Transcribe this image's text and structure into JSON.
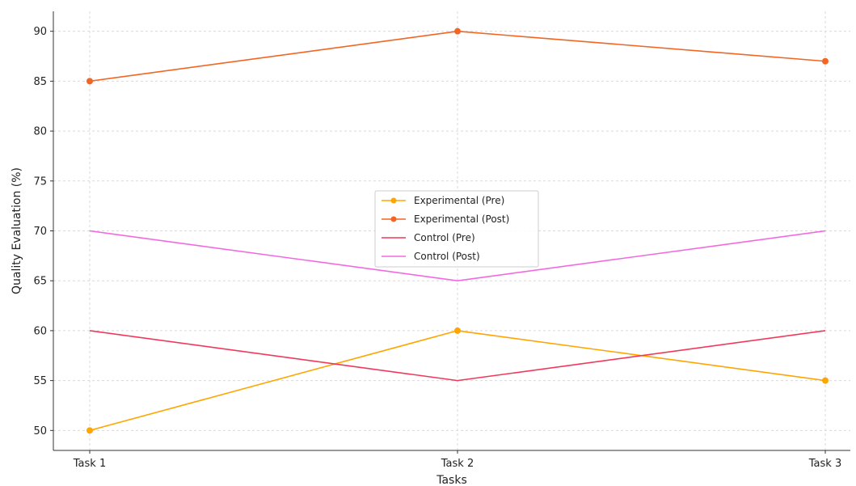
{
  "chart_data": {
    "type": "line",
    "title": "",
    "xlabel": "Tasks",
    "ylabel": "Quality Evaluation (%)",
    "categories": [
      "Task 1",
      "Task 2",
      "Task 3"
    ],
    "ylim": [
      48,
      92
    ],
    "yticks": [
      50,
      55,
      60,
      65,
      70,
      75,
      80,
      85,
      90
    ],
    "grid": true,
    "legend_position": "center",
    "series": [
      {
        "name": "Experimental (Pre)",
        "values": [
          50,
          60,
          55
        ],
        "color": "#ffa500",
        "marker": true
      },
      {
        "name": "Experimental (Post)",
        "values": [
          85,
          90,
          87
        ],
        "color": "#f26522",
        "marker": true
      },
      {
        "name": "Control (Pre)",
        "values": [
          60,
          55,
          60
        ],
        "color": "#f2385a",
        "marker": false
      },
      {
        "name": "Control (Post)",
        "values": [
          70,
          65,
          70
        ],
        "color": "#f26ae0",
        "marker": false
      }
    ]
  }
}
